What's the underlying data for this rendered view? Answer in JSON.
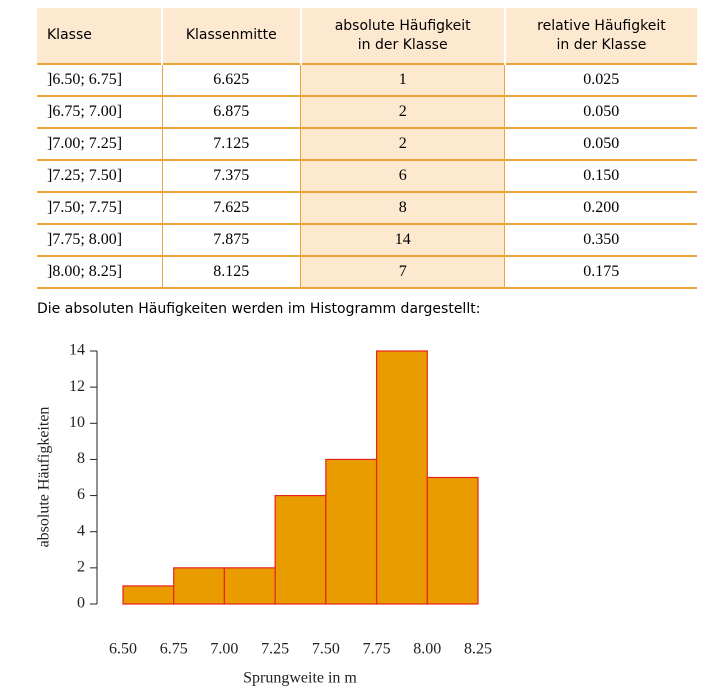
{
  "table": {
    "header": [
      "Klasse",
      "Klassenmitte",
      "absolute Häufigkeit\nin der Klasse",
      "relative Häufigkeit\nin der Klasse"
    ],
    "rows": [
      [
        "]6.50; 6.75]",
        "6.625",
        "1",
        "0.025"
      ],
      [
        "]6.75; 7.00]",
        "6.875",
        "2",
        "0.050"
      ],
      [
        "]7.00; 7.25]",
        "7.125",
        "2",
        "0.050"
      ],
      [
        "]7.25; 7.50]",
        "7.375",
        "6",
        "0.150"
      ],
      [
        "]7.50; 7.75]",
        "7.625",
        "8",
        "0.200"
      ],
      [
        "]7.75; 8.00]",
        "7.875",
        "14",
        "0.350"
      ],
      [
        "]8.00; 8.25]",
        "8.125",
        "7",
        "0.175"
      ]
    ]
  },
  "caption": "Die absoluten Häufigkeiten werden im Histogramm dargestellt:",
  "chart_data": {
    "type": "histogram",
    "bins": [
      6.5,
      6.75,
      7.0,
      7.25,
      7.5,
      7.75,
      8.0,
      8.25
    ],
    "values": [
      1,
      2,
      2,
      6,
      8,
      14,
      7
    ],
    "color": "#e89c00",
    "edgecolor": "#e8231c",
    "xlabel": "Sprungweite in m",
    "ylabel": "absolute Häufigkeiten",
    "xlim": [
      6.5,
      8.25
    ],
    "xticks": [
      {
        "value": 6.5,
        "label": "6.50"
      },
      {
        "value": 6.75,
        "label": "6.75"
      },
      {
        "value": 7.0,
        "label": "7.00"
      },
      {
        "value": 7.25,
        "label": "7.25"
      },
      {
        "value": 7.5,
        "label": "7.50"
      },
      {
        "value": 7.75,
        "label": "7.75"
      },
      {
        "value": 8.0,
        "label": "8.00"
      },
      {
        "value": 8.25,
        "label": "8.25"
      }
    ],
    "ylim": [
      0,
      14
    ],
    "yticks": [
      0,
      2,
      4,
      6,
      8,
      10,
      12,
      14
    ]
  }
}
